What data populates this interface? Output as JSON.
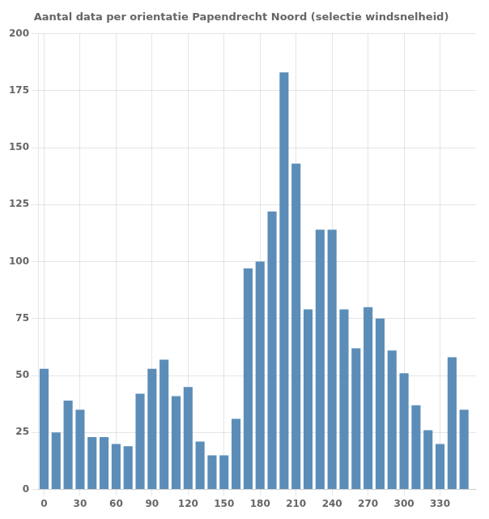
{
  "chart_data": {
    "type": "bar",
    "title": "Aantal data per orientatie Papendrecht Noord (selectie windsnelheid)",
    "x": [
      0,
      10,
      20,
      30,
      40,
      50,
      60,
      70,
      80,
      90,
      100,
      110,
      120,
      130,
      140,
      150,
      160,
      170,
      180,
      190,
      200,
      210,
      220,
      230,
      240,
      250,
      260,
      270,
      280,
      290,
      300,
      310,
      320,
      330,
      340,
      350
    ],
    "values": [
      53,
      25,
      39,
      35,
      23,
      23,
      20,
      19,
      42,
      53,
      57,
      41,
      45,
      21,
      15,
      15,
      31,
      97,
      100,
      122,
      183,
      143,
      79,
      114,
      114,
      79,
      62,
      80,
      75,
      61,
      51,
      37,
      26,
      20,
      58,
      35
    ],
    "color": "#5B8DB8",
    "xlim": [
      -5,
      360
    ],
    "xticks": [
      0,
      30,
      60,
      90,
      120,
      150,
      180,
      210,
      240,
      270,
      300,
      330
    ],
    "ylim": [
      0,
      200
    ],
    "yticks": [
      0,
      25,
      50,
      75,
      100,
      125,
      150,
      175,
      200
    ],
    "grid": true
  }
}
